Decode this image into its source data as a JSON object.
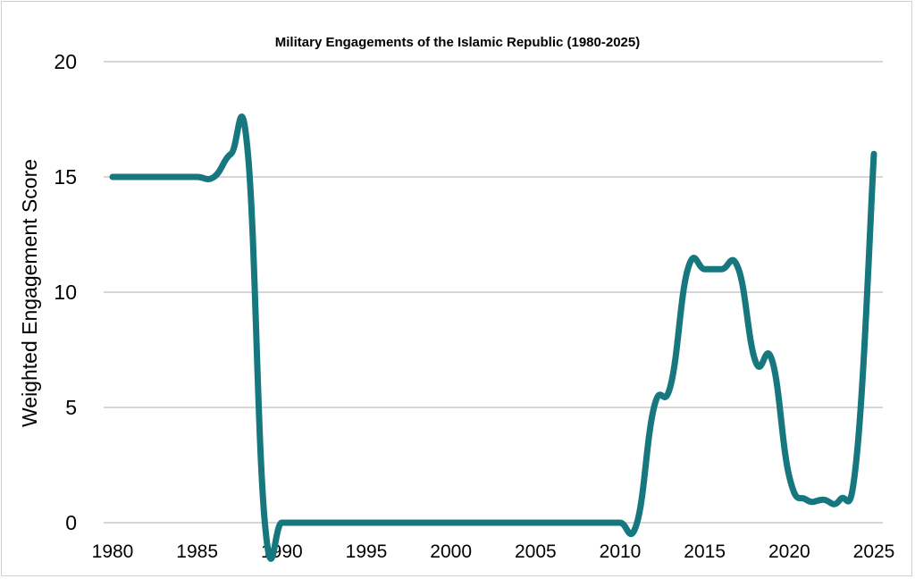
{
  "chart_data": {
    "type": "line",
    "title": "Military Engagements of the Islamic Republic (1980-2025)",
    "xlabel": "",
    "ylabel": "Weighted Engagement Score",
    "xlim": [
      1980,
      2025
    ],
    "ylim": [
      0,
      20
    ],
    "x_ticks": [
      "1980",
      "1985",
      "1990",
      "1995",
      "2000",
      "2005",
      "2010",
      "2015",
      "2020",
      "2025"
    ],
    "y_ticks": [
      "0",
      "5",
      "10",
      "15",
      "20"
    ],
    "grid": true,
    "series": [
      {
        "name": "Weighted Engagement Score",
        "color": "#17777f",
        "x": [
          1980,
          1981,
          1982,
          1983,
          1984,
          1985,
          1986,
          1987,
          1988,
          1989,
          1990,
          1991,
          1992,
          1993,
          1994,
          1995,
          1996,
          1997,
          1998,
          1999,
          2000,
          2001,
          2002,
          2003,
          2004,
          2005,
          2006,
          2007,
          2008,
          2009,
          2010,
          2011,
          2012,
          2013,
          2014,
          2015,
          2016,
          2017,
          2018,
          2019,
          2020,
          2021,
          2022,
          2023,
          2024,
          2025
        ],
        "values": [
          15,
          15,
          15,
          15,
          15,
          15,
          15,
          16,
          16,
          0,
          0,
          0,
          0,
          0,
          0,
          0,
          0,
          0,
          0,
          0,
          0,
          0,
          0,
          0,
          0,
          0,
          0,
          0,
          0,
          0,
          0,
          0,
          5,
          6,
          11,
          11,
          11,
          11,
          7,
          7,
          2,
          1,
          1,
          1,
          3,
          16
        ]
      }
    ]
  }
}
